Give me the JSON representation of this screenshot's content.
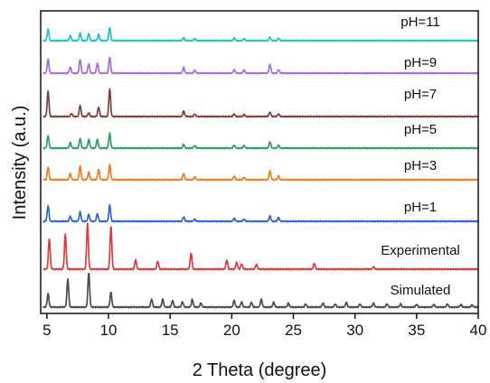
{
  "chart_data": {
    "type": "line",
    "xlabel": "2 Theta (degree)",
    "ylabel": "Intensity (a.u.)",
    "xlim": [
      4.5,
      40
    ],
    "xticks": [
      5,
      10,
      15,
      20,
      25,
      30,
      35,
      40
    ],
    "y_ticks_shown": false,
    "grid": false,
    "legend": "none (labels placed above each trace)",
    "series": [
      {
        "name": "pH=11",
        "color": "#1fc2c6",
        "peaks": [
          {
            "x": 5.1,
            "h": 0.45
          },
          {
            "x": 6.9,
            "h": 0.22
          },
          {
            "x": 7.7,
            "h": 0.3
          },
          {
            "x": 8.4,
            "h": 0.28
          },
          {
            "x": 9.2,
            "h": 0.25
          },
          {
            "x": 10.1,
            "h": 0.52
          },
          {
            "x": 16.1,
            "h": 0.12
          },
          {
            "x": 17.0,
            "h": 0.08
          },
          {
            "x": 20.2,
            "h": 0.1
          },
          {
            "x": 21.0,
            "h": 0.08
          },
          {
            "x": 23.1,
            "h": 0.13
          },
          {
            "x": 23.8,
            "h": 0.1
          }
        ]
      },
      {
        "name": "pH=9",
        "color": "#a46ed8",
        "peaks": [
          {
            "x": 5.1,
            "h": 0.55
          },
          {
            "x": 6.9,
            "h": 0.25
          },
          {
            "x": 7.7,
            "h": 0.55
          },
          {
            "x": 8.4,
            "h": 0.38
          },
          {
            "x": 9.1,
            "h": 0.4
          },
          {
            "x": 10.1,
            "h": 0.65
          },
          {
            "x": 16.1,
            "h": 0.22
          },
          {
            "x": 17.0,
            "h": 0.12
          },
          {
            "x": 20.2,
            "h": 0.14
          },
          {
            "x": 21.0,
            "h": 0.12
          },
          {
            "x": 23.1,
            "h": 0.35
          },
          {
            "x": 23.8,
            "h": 0.14
          }
        ]
      },
      {
        "name": "pH=7",
        "color": "#7b3f3f",
        "peaks": [
          {
            "x": 5.1,
            "h": 1.0
          },
          {
            "x": 7.0,
            "h": 0.12
          },
          {
            "x": 7.7,
            "h": 0.45
          },
          {
            "x": 8.4,
            "h": 0.15
          },
          {
            "x": 9.2,
            "h": 0.38
          },
          {
            "x": 10.1,
            "h": 1.1
          },
          {
            "x": 16.1,
            "h": 0.22
          },
          {
            "x": 17.0,
            "h": 0.1
          },
          {
            "x": 20.2,
            "h": 0.1
          },
          {
            "x": 21.0,
            "h": 0.08
          },
          {
            "x": 23.1,
            "h": 0.18
          },
          {
            "x": 23.8,
            "h": 0.1
          }
        ]
      },
      {
        "name": "pH=5",
        "color": "#2e9e5f",
        "peaks": [
          {
            "x": 5.1,
            "h": 0.5
          },
          {
            "x": 6.9,
            "h": 0.22
          },
          {
            "x": 7.7,
            "h": 0.38
          },
          {
            "x": 8.4,
            "h": 0.35
          },
          {
            "x": 9.1,
            "h": 0.35
          },
          {
            "x": 10.1,
            "h": 0.58
          },
          {
            "x": 16.1,
            "h": 0.15
          },
          {
            "x": 17.0,
            "h": 0.1
          },
          {
            "x": 20.2,
            "h": 0.12
          },
          {
            "x": 21.0,
            "h": 0.1
          },
          {
            "x": 23.1,
            "h": 0.25
          },
          {
            "x": 23.8,
            "h": 0.12
          }
        ]
      },
      {
        "name": "pH=3",
        "color": "#f07d22",
        "peaks": [
          {
            "x": 5.1,
            "h": 0.52
          },
          {
            "x": 6.9,
            "h": 0.25
          },
          {
            "x": 7.7,
            "h": 0.55
          },
          {
            "x": 8.4,
            "h": 0.3
          },
          {
            "x": 9.2,
            "h": 0.42
          },
          {
            "x": 10.1,
            "h": 0.6
          },
          {
            "x": 16.1,
            "h": 0.25
          },
          {
            "x": 17.0,
            "h": 0.12
          },
          {
            "x": 20.2,
            "h": 0.14
          },
          {
            "x": 21.0,
            "h": 0.1
          },
          {
            "x": 23.1,
            "h": 0.35
          },
          {
            "x": 23.8,
            "h": 0.15
          }
        ]
      },
      {
        "name": "pH=1",
        "color": "#2c66d4",
        "peaks": [
          {
            "x": 5.1,
            "h": 0.62
          },
          {
            "x": 6.9,
            "h": 0.2
          },
          {
            "x": 7.7,
            "h": 0.38
          },
          {
            "x": 8.4,
            "h": 0.28
          },
          {
            "x": 9.1,
            "h": 0.3
          },
          {
            "x": 10.1,
            "h": 0.65
          },
          {
            "x": 16.1,
            "h": 0.18
          },
          {
            "x": 17.0,
            "h": 0.08
          },
          {
            "x": 20.2,
            "h": 0.12
          },
          {
            "x": 21.0,
            "h": 0.08
          },
          {
            "x": 23.1,
            "h": 0.22
          },
          {
            "x": 23.8,
            "h": 0.15
          }
        ]
      },
      {
        "name": "Experimental",
        "color": "#e03a3a",
        "peaks": [
          {
            "x": 5.2,
            "h": 1.15
          },
          {
            "x": 6.5,
            "h": 1.3
          },
          {
            "x": 8.3,
            "h": 1.7
          },
          {
            "x": 10.2,
            "h": 1.6
          },
          {
            "x": 12.2,
            "h": 0.35
          },
          {
            "x": 14.0,
            "h": 0.3
          },
          {
            "x": 16.7,
            "h": 0.6
          },
          {
            "x": 19.6,
            "h": 0.35
          },
          {
            "x": 20.4,
            "h": 0.25
          },
          {
            "x": 20.8,
            "h": 0.2
          },
          {
            "x": 22.0,
            "h": 0.18
          },
          {
            "x": 26.7,
            "h": 0.22
          },
          {
            "x": 31.5,
            "h": 0.08
          }
        ]
      },
      {
        "name": "Simulated",
        "color": "#4d4d4d",
        "peaks": [
          {
            "x": 5.1,
            "h": 0.5
          },
          {
            "x": 6.7,
            "h": 1.05
          },
          {
            "x": 8.4,
            "h": 1.3
          },
          {
            "x": 10.2,
            "h": 0.55
          },
          {
            "x": 13.5,
            "h": 0.3
          },
          {
            "x": 14.4,
            "h": 0.3
          },
          {
            "x": 15.2,
            "h": 0.25
          },
          {
            "x": 16.0,
            "h": 0.2
          },
          {
            "x": 16.8,
            "h": 0.28
          },
          {
            "x": 17.5,
            "h": 0.15
          },
          {
            "x": 20.2,
            "h": 0.25
          },
          {
            "x": 20.8,
            "h": 0.2
          },
          {
            "x": 21.6,
            "h": 0.18
          },
          {
            "x": 22.4,
            "h": 0.3
          },
          {
            "x": 23.4,
            "h": 0.18
          },
          {
            "x": 24.6,
            "h": 0.15
          },
          {
            "x": 26.0,
            "h": 0.12
          },
          {
            "x": 27.4,
            "h": 0.15
          },
          {
            "x": 28.4,
            "h": 0.12
          },
          {
            "x": 29.3,
            "h": 0.18
          },
          {
            "x": 30.4,
            "h": 0.12
          },
          {
            "x": 31.5,
            "h": 0.15
          },
          {
            "x": 32.6,
            "h": 0.12
          },
          {
            "x": 33.7,
            "h": 0.12
          },
          {
            "x": 35.0,
            "h": 0.1
          },
          {
            "x": 36.4,
            "h": 0.1
          },
          {
            "x": 37.5,
            "h": 0.12
          },
          {
            "x": 38.6,
            "h": 0.1
          },
          {
            "x": 39.5,
            "h": 0.08
          }
        ]
      }
    ]
  }
}
